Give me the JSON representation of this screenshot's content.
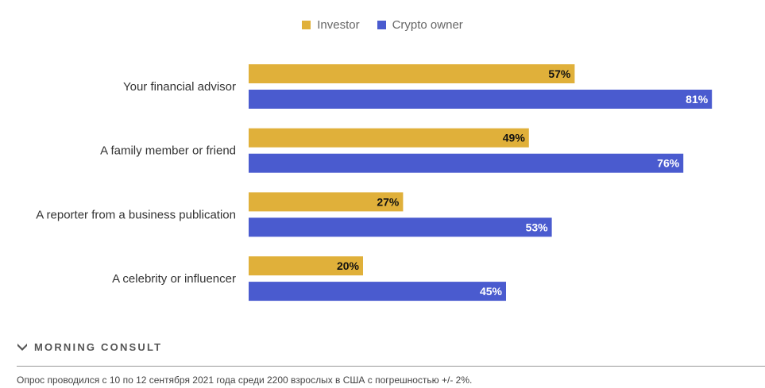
{
  "chart_data": {
    "type": "bar",
    "orientation": "horizontal",
    "categories": [
      "Your financial advisor",
      "A family member or friend",
      "A reporter from a business publication",
      "A celebrity or influencer"
    ],
    "series": [
      {
        "name": "Investor",
        "color": "#E0B03A",
        "values": [
          57,
          49,
          27,
          20
        ],
        "labels": [
          "57%",
          "49%",
          "27%",
          "20%"
        ]
      },
      {
        "name": "Crypto owner",
        "color": "#4A5BCF",
        "values": [
          81,
          76,
          53,
          45
        ],
        "labels": [
          "81%",
          "76%",
          "53%",
          "45%"
        ]
      }
    ],
    "xlim": [
      0,
      100
    ],
    "legend_position": "top-center",
    "grid": false
  },
  "brand": {
    "name": "MORNING CONSULT",
    "mark": "M-logo-icon"
  },
  "footnote": "Опрос проводился с 10 по 12 сентября 2021 года среди 2200 взрослых в США с погрешностью +/- 2%."
}
